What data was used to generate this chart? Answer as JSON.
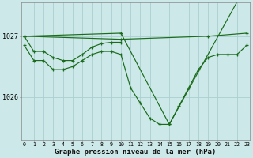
{
  "title": "Graphe pression niveau de la mer (hPa)",
  "background_color": "#cce8e8",
  "grid_color": "#aacfcf",
  "line_color": "#1a6b1a",
  "x_values": [
    0,
    1,
    2,
    3,
    4,
    5,
    6,
    7,
    8,
    9,
    10,
    11,
    12,
    13,
    14,
    15,
    16,
    17,
    18,
    19,
    20,
    21,
    22,
    23
  ],
  "series1": [
    1026.85,
    1026.6,
    1026.6,
    1026.45,
    1026.45,
    1026.5,
    1026.6,
    1026.7,
    1026.75,
    1026.75,
    1026.7,
    1026.15,
    1025.9,
    1025.65,
    1025.55,
    1025.55,
    1025.85,
    1026.15,
    1026.45,
    1026.65,
    1026.7,
    1026.7,
    1026.7,
    1026.85
  ],
  "series2_x": [
    0,
    1,
    2,
    3,
    4,
    5,
    6,
    7,
    8,
    9,
    10
  ],
  "series2_y": [
    1027.0,
    1026.75,
    1026.75,
    1026.65,
    1026.6,
    1026.6,
    1026.7,
    1026.82,
    1026.88,
    1026.9,
    1026.9
  ],
  "series3_x": [
    0,
    10,
    19,
    23
  ],
  "series3_y": [
    1027.0,
    1026.95,
    1027.0,
    1027.05
  ],
  "series4_x": [
    0,
    10,
    15,
    23
  ],
  "series4_y": [
    1027.0,
    1027.05,
    1025.55,
    1027.85
  ],
  "ylim": [
    1025.3,
    1027.55
  ],
  "yticks": [
    1026.0,
    1027.0
  ],
  "title_fontsize": 6.5
}
